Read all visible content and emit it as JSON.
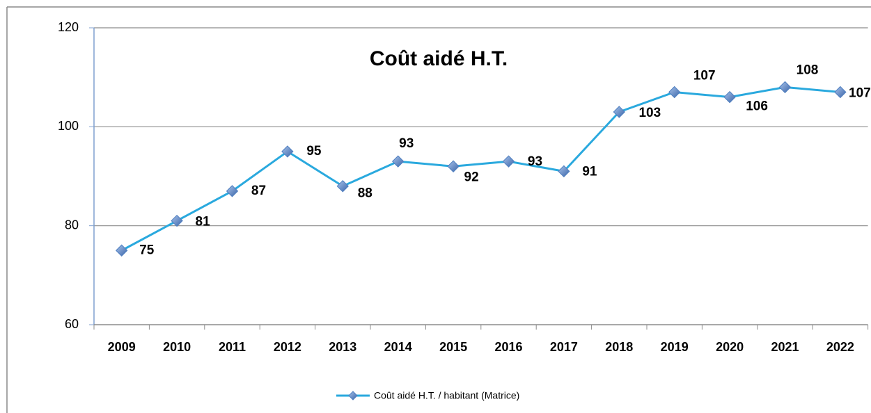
{
  "chart_data": {
    "type": "line",
    "title": "Coût aidé H.T.",
    "categories": [
      "2009",
      "2010",
      "2011",
      "2012",
      "2013",
      "2014",
      "2015",
      "2016",
      "2017",
      "2018",
      "2019",
      "2020",
      "2021",
      "2022"
    ],
    "series": [
      {
        "name": "Coût aidé H.T. / habitant (Matrice)",
        "color": "#2aa9de",
        "marker_color": "#4f7fc0",
        "values": [
          75,
          81,
          87,
          95,
          88,
          93,
          92,
          93,
          91,
          103,
          107,
          106,
          108,
          107
        ]
      }
    ],
    "ylim": [
      60,
      120
    ],
    "yticks": [
      60,
      80,
      100,
      120
    ],
    "grid": true,
    "legend": "bottom"
  }
}
